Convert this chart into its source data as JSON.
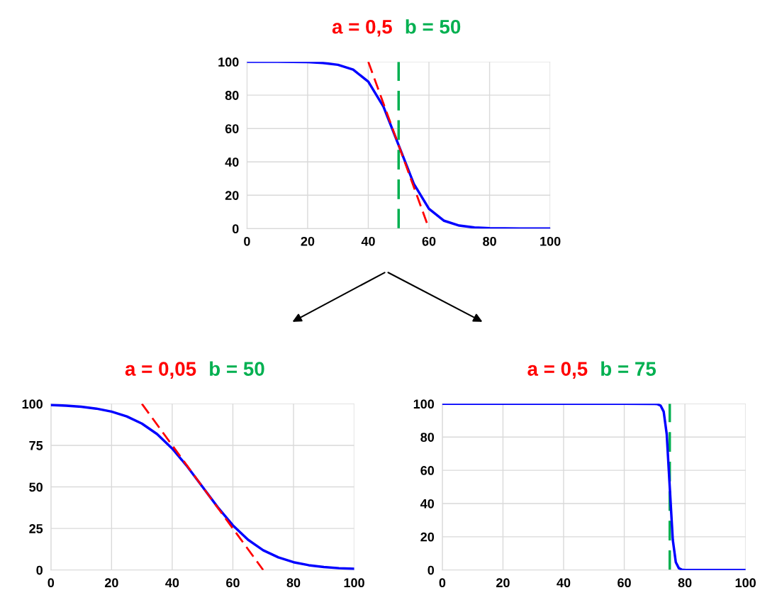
{
  "chart_data": [
    {
      "type": "line",
      "title": "a = 0,5",
      "subtitle": "b = 50",
      "xlim": [
        0,
        100
      ],
      "ylim": [
        0,
        100
      ],
      "xticks": [
        0,
        20,
        40,
        60,
        80,
        100
      ],
      "yticks": [
        0,
        20,
        40,
        60,
        80,
        100
      ],
      "grid": true,
      "series": [
        {
          "color": "#0000ff",
          "x": [
            0,
            10,
            20,
            25,
            30,
            35,
            40,
            45,
            50,
            55,
            60,
            65,
            70,
            75,
            80,
            90,
            100
          ],
          "values": [
            100,
            100,
            99.8,
            99.3,
            98.2,
            95.3,
            88.1,
            73.1,
            50,
            26.9,
            11.9,
            4.7,
            1.8,
            0.7,
            0.2,
            0,
            0
          ]
        },
        {
          "type": "line",
          "line_style": "dashed",
          "color": "#ff0000",
          "x": [
            40,
            60
          ],
          "values": [
            100,
            0
          ]
        }
      ],
      "ref_lines": [
        {
          "axis": "x",
          "value": 50,
          "color": "#00b050",
          "line_style": "dashed"
        }
      ]
    },
    {
      "type": "line",
      "title": "a = 0,05",
      "subtitle": "b = 50",
      "xlim": [
        0,
        100
      ],
      "ylim": [
        0,
        100
      ],
      "xticks": [
        0,
        20,
        40,
        60,
        80,
        100
      ],
      "yticks": [
        0,
        25,
        50,
        75,
        100
      ],
      "grid": true,
      "series": [
        {
          "color": "#0000ff",
          "x": [
            0,
            5,
            10,
            15,
            20,
            25,
            30,
            35,
            40,
            45,
            50,
            55,
            60,
            65,
            70,
            75,
            80,
            85,
            90,
            95,
            100
          ],
          "values": [
            99.3,
            98.9,
            98.2,
            97.1,
            95.3,
            92.4,
            88.1,
            81.8,
            73.1,
            62.2,
            50,
            37.8,
            26.9,
            18.2,
            11.9,
            7.6,
            4.7,
            2.9,
            1.8,
            1.1,
            0.7
          ]
        },
        {
          "type": "line",
          "line_style": "dashed",
          "color": "#ff0000",
          "x": [
            30,
            70
          ],
          "values": [
            100,
            0
          ]
        }
      ]
    },
    {
      "type": "line",
      "title": "a = 0,5",
      "subtitle": "b = 75",
      "xlim": [
        0,
        100
      ],
      "ylim": [
        0,
        100
      ],
      "xticks": [
        0,
        20,
        40,
        60,
        80,
        100
      ],
      "yticks": [
        0,
        20,
        40,
        60,
        80,
        100
      ],
      "grid": true,
      "series": [
        {
          "color": "#0000ff",
          "x": [
            0,
            20,
            40,
            60,
            70,
            71,
            72,
            73,
            74,
            75,
            76,
            77,
            78,
            79,
            80,
            90,
            100
          ],
          "values": [
            100,
            100,
            100,
            100,
            99.9,
            99.8,
            98.9,
            95.3,
            81.8,
            50,
            18.2,
            4.7,
            1.1,
            0.2,
            0,
            0,
            0
          ]
        }
      ],
      "ref_lines": [
        {
          "axis": "x",
          "value": 75,
          "color": "#00b050",
          "line_style": "dashed"
        }
      ]
    }
  ]
}
